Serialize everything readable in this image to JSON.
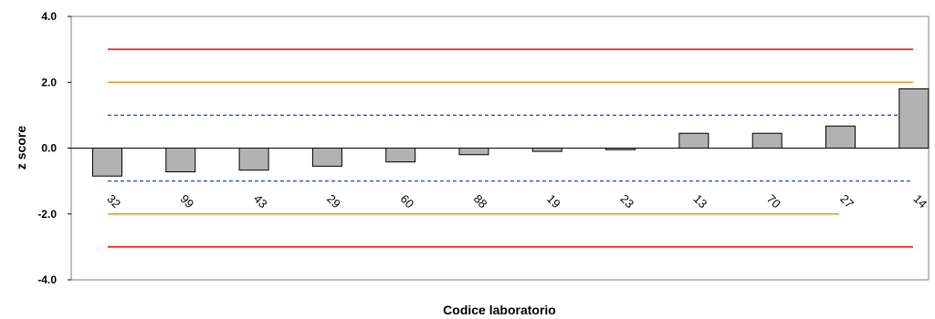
{
  "chart_data": {
    "type": "bar",
    "title": "",
    "xlabel": "Codice laboratorio",
    "ylabel": "z score",
    "ylim": [
      -4,
      4
    ],
    "yticks": [
      -4,
      -2,
      0,
      2,
      4
    ],
    "ytick_labels": [
      "-4.0",
      "-2.0",
      "0.0",
      "2.0",
      "4.0"
    ],
    "grid": false,
    "legend": "none",
    "categories": [
      "32",
      "99",
      "43",
      "29",
      "60",
      "88",
      "19",
      "23",
      "13",
      "70",
      "27",
      "14"
    ],
    "values": [
      -0.85,
      -0.72,
      -0.67,
      -0.55,
      -0.42,
      -0.2,
      -0.1,
      -0.05,
      0.45,
      0.45,
      0.67,
      1.8
    ],
    "bar_color": "#b2b2b2",
    "reference_lines": [
      {
        "value": 3,
        "color": "#ff0000",
        "style": "solid",
        "span": "full"
      },
      {
        "value": 2,
        "color": "#ff8c1a",
        "style": "solid",
        "span": "full"
      },
      {
        "value": 1,
        "color": "#1f3fcc",
        "style": "dashed",
        "span": "full"
      },
      {
        "value": -1,
        "color": "#1f3fcc",
        "style": "dashed",
        "span": "full"
      },
      {
        "value": -2,
        "color": "#ff8c1a",
        "style": "solid",
        "span": "to-27"
      },
      {
        "value": -3,
        "color": "#ff0000",
        "style": "solid",
        "span": "full"
      }
    ]
  }
}
